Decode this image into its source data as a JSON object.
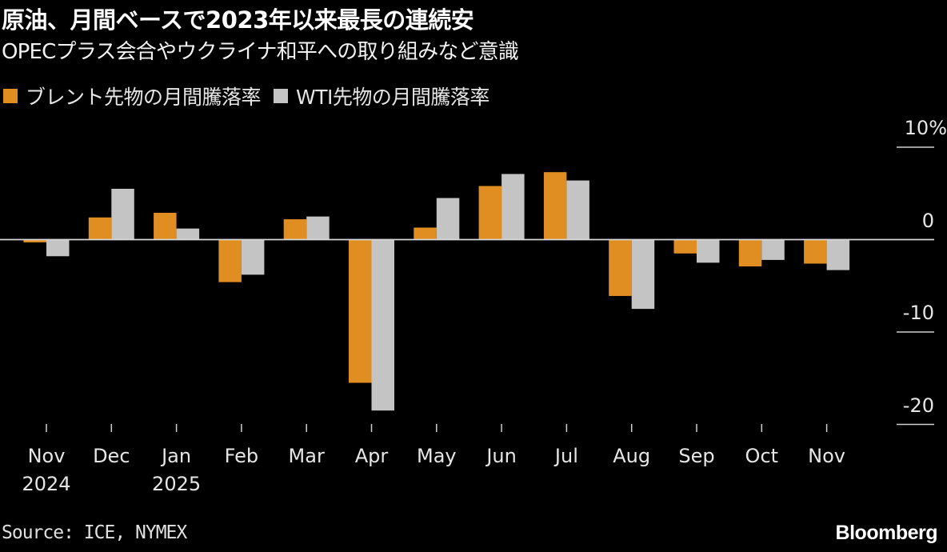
{
  "header": {
    "title": "原油、月間ベースで2023年以来最長の連続安",
    "subtitle": "OPECプラス会合やウクライナ和平への取り組みなど意識"
  },
  "legend": [
    {
      "label": "ブレント先物の月間騰落率",
      "color": "#E08E22"
    },
    {
      "label": "WTI先物の月間騰落率",
      "color": "#C4C4C4"
    }
  ],
  "y_axis": {
    "ticks": [
      {
        "value": 10,
        "label": "10%"
      },
      {
        "value": 0,
        "label": "0"
      },
      {
        "value": -10,
        "label": "-10"
      },
      {
        "value": -20,
        "label": "-20"
      }
    ]
  },
  "footer": {
    "source": "Source: ICE, NYMEX",
    "brand": "Bloomberg"
  },
  "chart_data": {
    "type": "bar",
    "title": "原油、月間ベースで2023年以来最長の連続安",
    "subtitle": "OPECプラス会合やウクライナ和平への取り組みなど意識",
    "xlabel": "",
    "ylabel": "%",
    "ylim": [
      -21,
      11
    ],
    "grid": "y-axis short ticks only at right",
    "legend_position": "top-left",
    "categories": [
      "Nov 2024",
      "Dec",
      "Jan 2025",
      "Feb",
      "Mar",
      "Apr",
      "May",
      "Jun",
      "Jul",
      "Aug",
      "Sep",
      "Oct",
      "Nov"
    ],
    "category_labels": [
      {
        "line1": "Nov",
        "line2": "2024"
      },
      {
        "line1": "Dec",
        "line2": ""
      },
      {
        "line1": "Jan",
        "line2": "2025"
      },
      {
        "line1": "Feb",
        "line2": ""
      },
      {
        "line1": "Mar",
        "line2": ""
      },
      {
        "line1": "Apr",
        "line2": ""
      },
      {
        "line1": "May",
        "line2": ""
      },
      {
        "line1": "Jun",
        "line2": ""
      },
      {
        "line1": "Jul",
        "line2": ""
      },
      {
        "line1": "Aug",
        "line2": ""
      },
      {
        "line1": "Sep",
        "line2": ""
      },
      {
        "line1": "Oct",
        "line2": ""
      },
      {
        "line1": "Nov",
        "line2": ""
      }
    ],
    "series": [
      {
        "name": "ブレント先物の月間騰落率",
        "color": "#E08E22",
        "values": [
          -0.3,
          2.4,
          2.9,
          -4.6,
          2.2,
          -15.5,
          1.3,
          5.8,
          7.3,
          -6.1,
          -1.5,
          -2.9,
          -2.6
        ]
      },
      {
        "name": "WTI先物の月間騰落率",
        "color": "#C4C4C4",
        "values": [
          -1.8,
          5.5,
          1.2,
          -3.8,
          2.5,
          -18.5,
          4.5,
          7.1,
          6.4,
          -7.5,
          -2.5,
          -2.2,
          -3.3
        ]
      }
    ]
  }
}
